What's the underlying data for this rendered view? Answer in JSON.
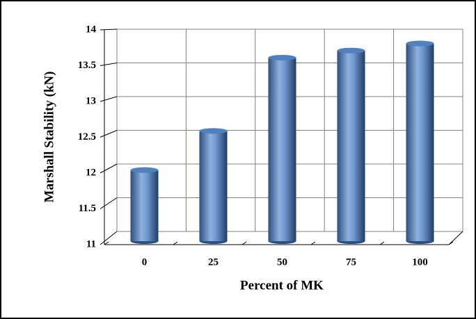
{
  "chart_data": {
    "type": "bar",
    "categories": [
      "0",
      "25",
      "50",
      "75",
      "100"
    ],
    "values": [
      12,
      12.55,
      13.58,
      13.68,
      13.78
    ],
    "color": "#4f81bd",
    "x_label": "Percent  of MK",
    "y_label": "Marshall Stability  (kN)",
    "ylim": [
      11,
      14
    ],
    "yticks": [
      11,
      11.5,
      12,
      12.5,
      13,
      13.5,
      14
    ],
    "grid": true
  }
}
